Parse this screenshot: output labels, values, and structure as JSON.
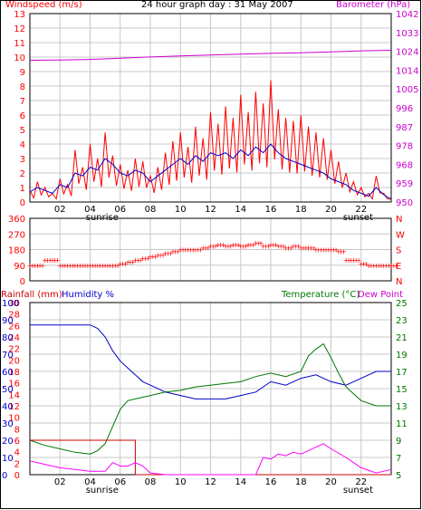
{
  "header": {
    "title": "24 hour graph day : 31 May 2007",
    "left_label": "Windspeed (m/s)",
    "right_label": "Barometer (hPa)"
  },
  "colors": {
    "red": "#ff0000",
    "blue": "#0000cc",
    "magenta": "#cc00cc",
    "green": "#007700",
    "black": "#000000",
    "grid": "#c8c8c8"
  },
  "panel_wind": {
    "y_left_ticks": [
      "0",
      "1",
      "2",
      "3",
      "4",
      "5",
      "6",
      "7",
      "8",
      "9",
      "10",
      "11",
      "12",
      "13"
    ],
    "y_right_ticks": [
      "950",
      "959",
      "968",
      "978",
      "987",
      "996",
      "1005",
      "1014",
      "1024",
      "1033",
      "1042"
    ],
    "x_ticks": [
      "02",
      "04",
      "06",
      "08",
      "10",
      "12",
      "14",
      "16",
      "18",
      "20",
      "22"
    ],
    "sunrise_label": "sunrise",
    "sunset_label": "sunset"
  },
  "panel_dir": {
    "y_left_ticks": [
      "0",
      "90",
      "180",
      "270",
      "360"
    ],
    "y_right_ticks": [
      "N",
      "E",
      "S",
      "W",
      "N"
    ]
  },
  "panel_bottom": {
    "rain_label": "Rainfall (mm)",
    "humidity_label": "Humidity %",
    "temp_label": "Temperature (°C)",
    "dew_label": "Dew Point",
    "rain_ticks": [
      "0",
      "2",
      "4",
      "6",
      "8",
      "10",
      "12",
      "14",
      "16",
      "18",
      "20",
      "22",
      "24",
      "26",
      "28",
      "30"
    ],
    "humidity_ticks": [
      "0",
      "10",
      "20",
      "30",
      "40",
      "50",
      "60",
      "70",
      "80",
      "90",
      "100"
    ],
    "temp_ticks": [
      "5",
      "7",
      "9",
      "11",
      "13",
      "15",
      "17",
      "19",
      "21",
      "23",
      "25"
    ],
    "x_ticks": [
      "02",
      "04",
      "06",
      "08",
      "10",
      "12",
      "14",
      "16",
      "18",
      "20",
      "22"
    ],
    "sunrise_label": "sunrise",
    "sunset_label": "sunset"
  },
  "chart_data": [
    {
      "type": "line",
      "title": "24 hour graph day : 31 May 2007",
      "xlabel": "",
      "x_range_hours": [
        0,
        24
      ],
      "ylim": [
        0,
        13
      ],
      "y2lim": [
        950,
        1042
      ],
      "series": [
        {
          "name": "Windspeed (m/s)",
          "color": "#ff0000",
          "x": [
            0,
            0.5,
            1,
            1.5,
            2,
            2.5,
            3,
            3.5,
            4,
            4.5,
            5,
            5.5,
            6,
            6.5,
            7,
            7.5,
            8,
            8.5,
            9,
            9.5,
            10,
            10.5,
            11,
            11.5,
            12,
            12.5,
            13,
            13.5,
            14,
            14.5,
            15,
            15.5,
            16,
            16.5,
            17,
            17.5,
            18,
            18.5,
            19,
            19.5,
            20,
            20.5,
            21,
            21.5,
            22,
            22.5,
            23,
            23.5,
            24
          ],
          "values": [
            0.8,
            1.4,
            1.0,
            0.6,
            1.6,
            1.2,
            3.6,
            2.4,
            4.0,
            3.0,
            4.8,
            3.2,
            2.6,
            2.2,
            3.0,
            2.8,
            1.8,
            2.4,
            3.4,
            4.2,
            4.8,
            3.8,
            5.2,
            4.4,
            6.2,
            5.4,
            6.6,
            5.8,
            7.4,
            6.2,
            7.6,
            6.8,
            8.4,
            6.4,
            5.8,
            5.6,
            6.0,
            5.2,
            4.8,
            4.4,
            3.6,
            2.8,
            2.0,
            1.4,
            1.0,
            0.6,
            1.8,
            0.6,
            0.2
          ]
        },
        {
          "name": "Windspeed average (m/s)",
          "color": "#0000cc",
          "x": [
            0,
            0.5,
            1,
            1.5,
            2,
            2.5,
            3,
            3.5,
            4,
            4.5,
            5,
            5.5,
            6,
            6.5,
            7,
            7.5,
            8,
            8.5,
            9,
            9.5,
            10,
            10.5,
            11,
            11.5,
            12,
            12.5,
            13,
            13.5,
            14,
            14.5,
            15,
            15.5,
            16,
            16.5,
            17,
            17.5,
            18,
            18.5,
            19,
            19.5,
            20,
            20.5,
            21,
            21.5,
            22,
            22.5,
            23,
            23.5,
            24
          ],
          "values": [
            0.7,
            1.0,
            0.8,
            0.6,
            1.2,
            1.0,
            2.0,
            1.8,
            2.4,
            2.2,
            3.0,
            2.6,
            2.0,
            1.8,
            2.2,
            2.0,
            1.4,
            1.8,
            2.2,
            2.6,
            3.0,
            2.6,
            3.2,
            2.8,
            3.4,
            3.2,
            3.4,
            3.0,
            3.6,
            3.2,
            3.8,
            3.4,
            4.0,
            3.4,
            3.0,
            2.8,
            2.6,
            2.4,
            2.2,
            2.0,
            1.6,
            1.4,
            1.2,
            0.8,
            0.6,
            0.4,
            1.0,
            0.5,
            0.2
          ]
        },
        {
          "name": "Barometer (hPa)",
          "color": "#cc00cc",
          "axis": "right",
          "x": [
            0,
            2,
            4,
            6,
            8,
            10,
            12,
            14,
            16,
            18,
            20,
            22,
            24
          ],
          "values": [
            1019.2,
            1019.3,
            1019.6,
            1020.2,
            1020.8,
            1021.3,
            1021.8,
            1022.2,
            1022.6,
            1022.9,
            1023.3,
            1023.8,
            1024.1
          ]
        }
      ]
    },
    {
      "type": "scatter",
      "title": "",
      "ylim": [
        0,
        360
      ],
      "series": [
        {
          "name": "Wind direction",
          "color": "#ff0000",
          "x": [
            0,
            0.5,
            1,
            1.5,
            2,
            2.5,
            3,
            3.5,
            4,
            4.5,
            5,
            5.5,
            6,
            6.5,
            7,
            7.5,
            8,
            8.5,
            9,
            9.5,
            10,
            10.5,
            11,
            11.5,
            12,
            12.5,
            13,
            13.5,
            14,
            14.5,
            15,
            15.5,
            16,
            16.5,
            17,
            17.5,
            18,
            18.5,
            19,
            19.5,
            20,
            20.5,
            21,
            21.5,
            22,
            22.5,
            23,
            23.5,
            24
          ],
          "values": [
            90,
            90,
            120,
            120,
            90,
            90,
            90,
            90,
            90,
            90,
            90,
            90,
            100,
            110,
            120,
            130,
            140,
            150,
            160,
            170,
            180,
            180,
            180,
            190,
            200,
            210,
            200,
            210,
            200,
            210,
            220,
            200,
            210,
            200,
            190,
            200,
            190,
            190,
            180,
            180,
            180,
            170,
            120,
            120,
            100,
            90,
            90,
            90,
            90
          ]
        }
      ]
    },
    {
      "type": "line",
      "title": "",
      "x_range_hours": [
        0,
        24
      ],
      "ylim": [
        0,
        100
      ],
      "series": [
        {
          "name": "Humidity %",
          "color": "#0000cc",
          "x": [
            0,
            1,
            2,
            3,
            4,
            4.5,
            5,
            5.5,
            6,
            6.5,
            7,
            7.5,
            8,
            9,
            10,
            11,
            12,
            13,
            14,
            15,
            16,
            17,
            18,
            19,
            20,
            21,
            22,
            23,
            24
          ],
          "values": [
            87,
            87,
            87,
            87,
            87,
            85,
            80,
            72,
            66,
            62,
            58,
            54,
            52,
            48,
            46,
            44,
            44,
            44,
            46,
            48,
            54,
            52,
            56,
            58,
            54,
            52,
            56,
            60,
            60
          ]
        },
        {
          "name": "Temperature (°C)",
          "color": "#007700",
          "axis": "right",
          "y2lim": [
            5,
            25
          ],
          "x": [
            0,
            1,
            2,
            3,
            4,
            4.5,
            5,
            5.5,
            6,
            6.5,
            7,
            7.5,
            8,
            9,
            10,
            11,
            12,
            13,
            14,
            15,
            16,
            17,
            18,
            18.5,
            19,
            19.5,
            20,
            20.5,
            21,
            22,
            23,
            24
          ],
          "values": [
            9.0,
            8.4,
            8.0,
            7.6,
            7.4,
            7.8,
            8.6,
            10.6,
            12.6,
            13.6,
            13.8,
            14.0,
            14.2,
            14.6,
            14.8,
            15.2,
            15.4,
            15.6,
            15.8,
            16.4,
            16.8,
            16.4,
            17.0,
            18.8,
            19.6,
            20.2,
            18.6,
            16.8,
            15.2,
            13.6,
            13.0,
            13.0
          ]
        },
        {
          "name": "Rainfall (mm)",
          "color": "#cc0000",
          "x": [
            0,
            7.0,
            7.0,
            24
          ],
          "values": [
            6.0,
            6.0,
            0.0,
            0.0
          ]
        },
        {
          "name": "Dew Point",
          "color": "#ff00ff",
          "x": [
            0,
            1,
            2,
            3,
            4,
            5,
            5.5,
            6,
            6.5,
            7,
            7.5,
            8,
            9,
            10,
            11,
            12,
            13,
            14,
            15,
            15.5,
            16,
            16.5,
            17,
            17.5,
            18,
            18.5,
            19,
            19.5,
            20,
            21,
            22,
            23,
            24
          ],
          "values": [
            6.6,
            6.2,
            5.8,
            5.6,
            5.4,
            5.4,
            6.4,
            6.0,
            6.0,
            6.4,
            6.0,
            5.2,
            5.0,
            5.0,
            5.0,
            5.0,
            5.0,
            5.0,
            5.0,
            7.0,
            6.8,
            7.4,
            7.2,
            7.6,
            7.4,
            7.8,
            8.2,
            8.6,
            8.0,
            7.0,
            5.8,
            5.2,
            5.6
          ]
        }
      ]
    }
  ]
}
